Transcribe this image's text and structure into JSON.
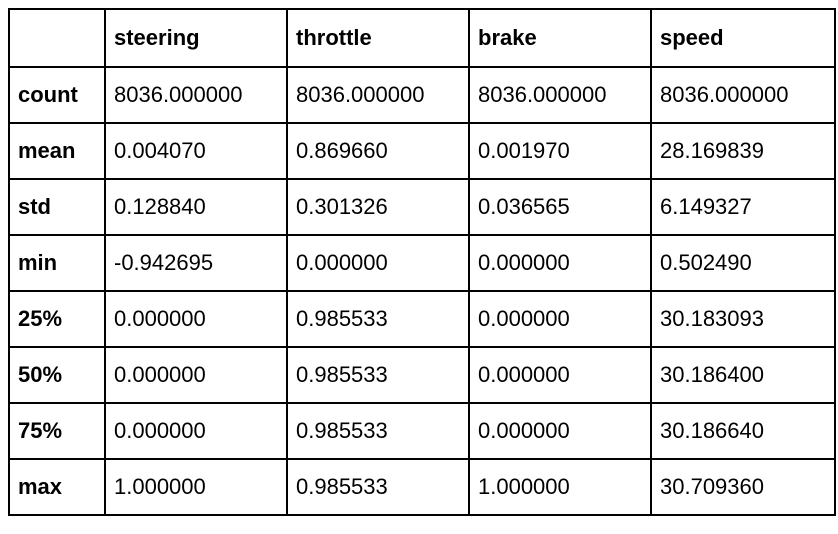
{
  "table": {
    "columns": [
      "",
      "steering",
      "throttle",
      "brake",
      "speed"
    ],
    "rows": [
      {
        "label": "count",
        "values": [
          "8036.000000",
          "8036.000000",
          "8036.000000",
          "8036.000000"
        ]
      },
      {
        "label": "mean",
        "values": [
          "0.004070",
          "0.869660",
          "0.001970",
          "28.169839"
        ]
      },
      {
        "label": "std",
        "values": [
          "0.128840",
          "0.301326",
          "0.036565",
          "6.149327"
        ]
      },
      {
        "label": "min",
        "values": [
          "-0.942695",
          "0.000000",
          "0.000000",
          "0.502490"
        ]
      },
      {
        "label": "25%",
        "values": [
          "0.000000",
          "0.985533",
          "0.000000",
          "30.183093"
        ]
      },
      {
        "label": "50%",
        "values": [
          "0.000000",
          "0.985533",
          "0.000000",
          "30.186400"
        ]
      },
      {
        "label": "75%",
        "values": [
          "0.000000",
          "0.985533",
          "0.000000",
          "30.186640"
        ]
      },
      {
        "label": "max",
        "values": [
          "1.000000",
          "0.985533",
          "1.000000",
          "30.709360"
        ]
      }
    ]
  }
}
